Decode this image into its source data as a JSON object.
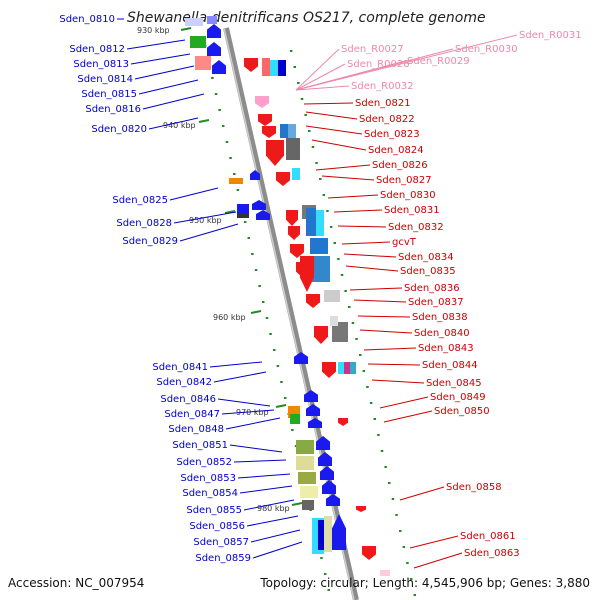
{
  "title": "Shewanella denitrificans OS217, complete genome",
  "footer": {
    "accession": "Accession: NC_007954",
    "summary": "Topology: circular; Length: 4,545,906 bp; Genes: 3,880"
  },
  "ticks": [
    "930 kbp",
    "940 kbp",
    "950 kbp",
    "960 kbp",
    "970 kbp",
    "980 kbp"
  ],
  "colors": {
    "backbone": "#8c8c8c",
    "left_label": "#0000cc",
    "right_label": "#cc0000",
    "rna_label": "#ee88aa",
    "forward_gene": "#1a1aee",
    "reverse_gene": "#ee1a1a",
    "rna_gene": "#ffa0cc",
    "tick_dots": "#228b22"
  },
  "left_labels": [
    "Sden_0810",
    "Sden_0812",
    "Sden_0813",
    "Sden_0814",
    "Sden_0815",
    "Sden_0816",
    "Sden_0820",
    "Sden_0825",
    "Sden_0828",
    "Sden_0829",
    "Sden_0841",
    "Sden_0842",
    "Sden_0846",
    "Sden_0847",
    "Sden_0848",
    "Sden_0851",
    "Sden_0852",
    "Sden_0853",
    "Sden_0854",
    "Sden_0855",
    "Sden_0856",
    "Sden_0857",
    "Sden_0859"
  ],
  "rna_labels": [
    "Sden_R0031",
    "Sden_R0027",
    "Sden_R0030",
    "Sden_R0028",
    "Sden_R0029",
    "Sden_R0032"
  ],
  "right_labels": [
    "Sden_0821",
    "Sden_0822",
    "Sden_0823",
    "Sden_0824",
    "Sden_0826",
    "Sden_0827",
    "Sden_0830",
    "Sden_0831",
    "Sden_0832",
    "gcvT",
    "Sden_0834",
    "Sden_0835",
    "Sden_0836",
    "Sden_0837",
    "Sden_0838",
    "Sden_0840",
    "Sden_0843",
    "Sden_0844",
    "Sden_0845",
    "Sden_0849",
    "Sden_0850",
    "Sden_0858",
    "Sden_0861",
    "Sden_0863"
  ]
}
